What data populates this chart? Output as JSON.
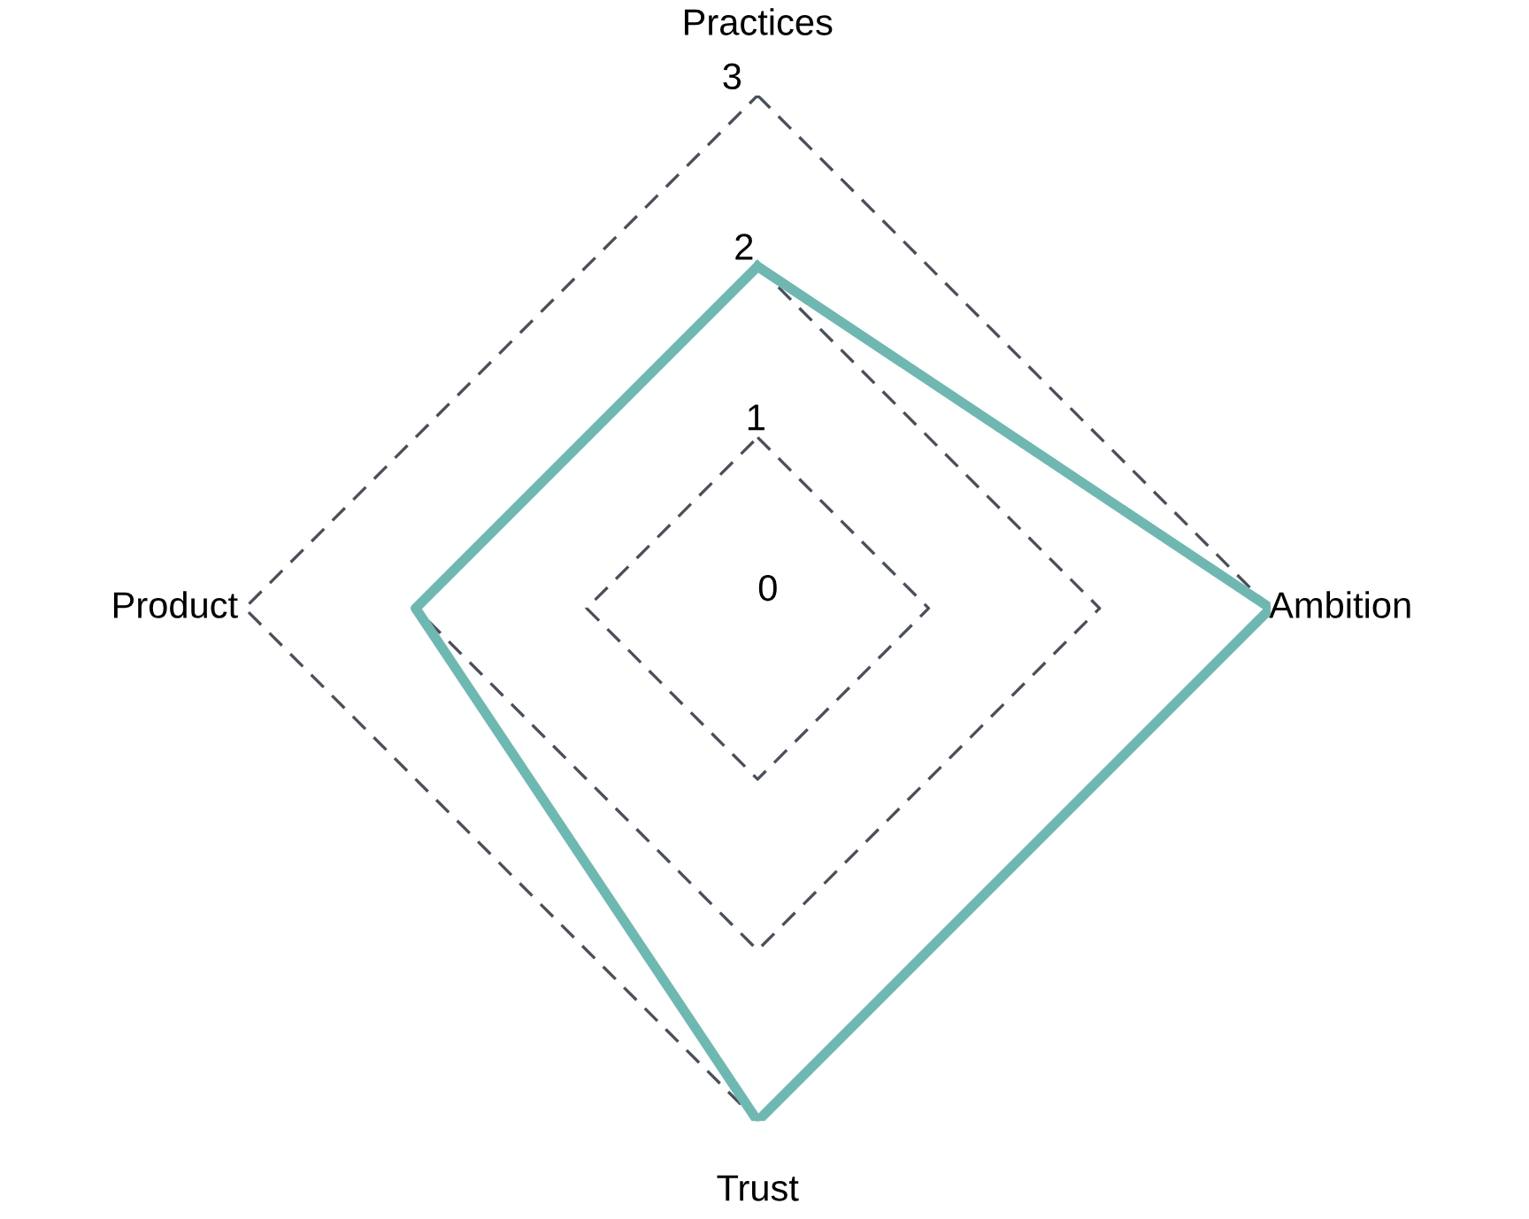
{
  "chart_data": {
    "type": "radar",
    "categories": [
      "Practices",
      "Ambition",
      "Trust",
      "Product"
    ],
    "series": [
      {
        "color": "#6fb8b1",
        "values": [
          2,
          3,
          3,
          2
        ]
      }
    ],
    "ylim": [
      0,
      3
    ],
    "yticks": [
      0,
      1,
      2,
      3
    ],
    "grid": true,
    "line_style": "solid",
    "marker": "none"
  }
}
